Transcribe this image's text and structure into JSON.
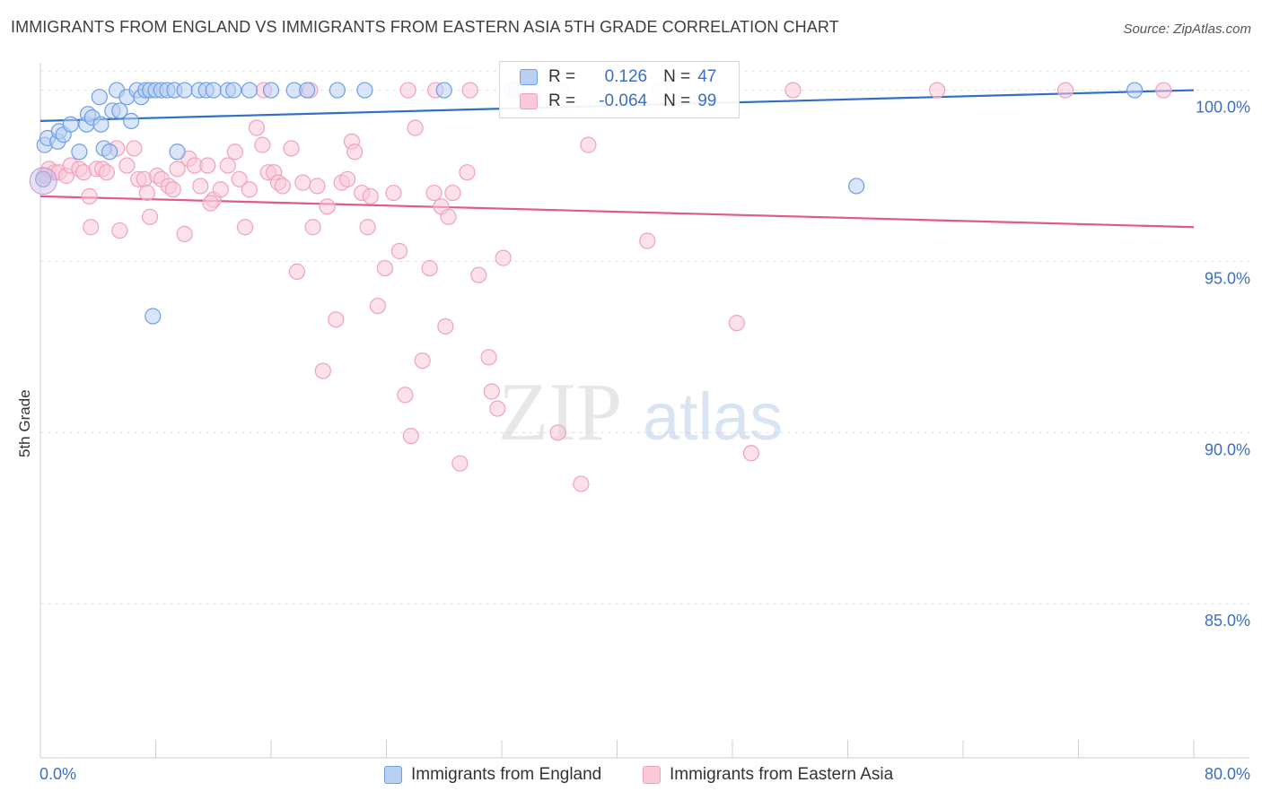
{
  "title": "IMMIGRANTS FROM ENGLAND VS IMMIGRANTS FROM EASTERN ASIA 5TH GRADE CORRELATION CHART",
  "source": "Source: ZipAtlas.com",
  "watermark": {
    "zip": "ZIP",
    "atlas": "atlas"
  },
  "colors": {
    "england": "#6f9ee6",
    "eastern_asia": "#f0a2bb",
    "england_line": "#2f6fc6",
    "eastern_asia_line": "#e05a8a",
    "axis_text": "#3a6fc4"
  },
  "stats": {
    "england": {
      "r_label": "R =",
      "r": "0.126",
      "n_label": "N =",
      "n": "47"
    },
    "eastern_asia": {
      "r_label": "R =",
      "r": "-0.064",
      "n_label": "N =",
      "n": "99"
    }
  },
  "chart_data": {
    "type": "scatter",
    "title": "IMMIGRANTS FROM ENGLAND VS IMMIGRANTS FROM EASTERN ASIA 5TH GRADE CORRELATION CHART",
    "xlabel": "",
    "ylabel": "5th Grade",
    "xlim": [
      0,
      80
    ],
    "ylim": [
      80.5,
      100.8
    ],
    "x_tick_labels": [
      "0.0%",
      "80.0%"
    ],
    "y_ticks": [
      85,
      90,
      95,
      100
    ],
    "y_tick_labels": [
      "85.0%",
      "90.0%",
      "95.0%",
      "100.0%"
    ],
    "grid": true,
    "legend_position": "bottom",
    "series": [
      {
        "name": "Immigrants from England",
        "color": "#6f9ee6",
        "trend": [
          [
            0,
            99.1
          ],
          [
            80,
            100.0
          ]
        ],
        "points": [
          [
            0.2,
            97.4
          ],
          [
            0.3,
            98.4
          ],
          [
            0.5,
            98.6
          ],
          [
            1.2,
            98.5
          ],
          [
            1.3,
            98.8
          ],
          [
            1.6,
            98.7
          ],
          [
            2.1,
            99.0
          ],
          [
            2.7,
            98.2
          ],
          [
            3.2,
            99.0
          ],
          [
            3.3,
            99.3
          ],
          [
            3.6,
            99.2
          ],
          [
            4.1,
            99.8
          ],
          [
            4.2,
            99.0
          ],
          [
            4.4,
            98.3
          ],
          [
            4.8,
            98.2
          ],
          [
            5.0,
            99.4
          ],
          [
            5.3,
            100.0
          ],
          [
            5.5,
            99.4
          ],
          [
            6.0,
            99.8
          ],
          [
            6.3,
            99.1
          ],
          [
            6.7,
            100.0
          ],
          [
            7.0,
            99.8
          ],
          [
            7.3,
            100.0
          ],
          [
            7.6,
            100.0
          ],
          [
            8.0,
            100.0
          ],
          [
            8.4,
            100.0
          ],
          [
            8.8,
            100.0
          ],
          [
            9.3,
            100.0
          ],
          [
            10.0,
            100.0
          ],
          [
            11.0,
            100.0
          ],
          [
            11.5,
            100.0
          ],
          [
            12.0,
            100.0
          ],
          [
            13.0,
            100.0
          ],
          [
            13.4,
            100.0
          ],
          [
            14.5,
            100.0
          ],
          [
            16.0,
            100.0
          ],
          [
            17.6,
            100.0
          ],
          [
            18.5,
            100.0
          ],
          [
            20.6,
            100.0
          ],
          [
            22.5,
            100.0
          ],
          [
            28.0,
            100.0
          ],
          [
            32.7,
            100.0
          ],
          [
            7.8,
            93.4
          ],
          [
            9.5,
            98.2
          ],
          [
            56.6,
            97.2
          ],
          [
            75.9,
            100.0
          ],
          [
            33.0,
            100.0
          ]
        ]
      },
      {
        "name": "Immigrants from Eastern Asia",
        "color": "#f0a2bb",
        "trend": [
          [
            0,
            96.9
          ],
          [
            80,
            96.0
          ]
        ],
        "points": [
          [
            0.3,
            97.5
          ],
          [
            0.6,
            97.7
          ],
          [
            1.0,
            97.6
          ],
          [
            1.3,
            97.6
          ],
          [
            1.8,
            97.5
          ],
          [
            2.1,
            97.8
          ],
          [
            2.7,
            97.7
          ],
          [
            3.0,
            97.6
          ],
          [
            3.4,
            96.9
          ],
          [
            3.5,
            96.0
          ],
          [
            3.9,
            97.7
          ],
          [
            4.3,
            97.7
          ],
          [
            4.6,
            97.6
          ],
          [
            5.3,
            98.3
          ],
          [
            5.5,
            95.9
          ],
          [
            6.0,
            97.8
          ],
          [
            6.5,
            98.3
          ],
          [
            6.8,
            97.4
          ],
          [
            7.2,
            97.4
          ],
          [
            7.6,
            96.3
          ],
          [
            8.1,
            97.5
          ],
          [
            8.4,
            97.4
          ],
          [
            8.9,
            97.2
          ],
          [
            9.5,
            97.7
          ],
          [
            10.0,
            95.8
          ],
          [
            10.3,
            98.0
          ],
          [
            10.7,
            97.8
          ],
          [
            11.1,
            97.2
          ],
          [
            11.6,
            97.8
          ],
          [
            12.0,
            96.8
          ],
          [
            12.5,
            97.1
          ],
          [
            13.0,
            97.8
          ],
          [
            13.5,
            98.2
          ],
          [
            13.8,
            97.4
          ],
          [
            14.2,
            96.0
          ],
          [
            14.5,
            97.1
          ],
          [
            15.0,
            98.9
          ],
          [
            15.4,
            98.4
          ],
          [
            15.8,
            97.6
          ],
          [
            16.2,
            97.6
          ],
          [
            16.5,
            97.3
          ],
          [
            16.8,
            97.2
          ],
          [
            17.4,
            98.3
          ],
          [
            17.8,
            94.7
          ],
          [
            18.2,
            97.3
          ],
          [
            18.7,
            100.0
          ],
          [
            18.9,
            96.0
          ],
          [
            19.2,
            97.2
          ],
          [
            19.6,
            91.8
          ],
          [
            19.9,
            96.6
          ],
          [
            20.5,
            93.3
          ],
          [
            20.9,
            97.3
          ],
          [
            21.3,
            97.4
          ],
          [
            21.6,
            98.5
          ],
          [
            21.8,
            98.2
          ],
          [
            22.3,
            97.0
          ],
          [
            22.7,
            96.0
          ],
          [
            22.9,
            96.9
          ],
          [
            23.4,
            93.7
          ],
          [
            23.9,
            94.8
          ],
          [
            24.5,
            97.0
          ],
          [
            24.9,
            95.3
          ],
          [
            25.3,
            91.1
          ],
          [
            25.7,
            89.9
          ],
          [
            26.0,
            98.9
          ],
          [
            26.5,
            92.1
          ],
          [
            27.0,
            94.8
          ],
          [
            27.3,
            97.0
          ],
          [
            27.8,
            96.6
          ],
          [
            28.1,
            93.1
          ],
          [
            28.3,
            96.3
          ],
          [
            28.6,
            97.0
          ],
          [
            29.1,
            89.1
          ],
          [
            29.6,
            97.6
          ],
          [
            30.4,
            94.6
          ],
          [
            31.1,
            92.2
          ],
          [
            31.3,
            91.2
          ],
          [
            31.7,
            90.7
          ],
          [
            32.1,
            95.1
          ],
          [
            33.6,
            100.0
          ],
          [
            35.9,
            90.0
          ],
          [
            36.1,
            100.0
          ],
          [
            37.5,
            88.5
          ],
          [
            38.0,
            98.4
          ],
          [
            42.1,
            95.6
          ],
          [
            43.0,
            100.0
          ],
          [
            48.3,
            93.2
          ],
          [
            49.3,
            89.4
          ],
          [
            52.2,
            100.0
          ],
          [
            62.2,
            100.0
          ],
          [
            71.1,
            100.0
          ],
          [
            77.9,
            100.0
          ],
          [
            27.4,
            100.0
          ],
          [
            29.8,
            100.0
          ],
          [
            25.5,
            100.0
          ],
          [
            15.5,
            100.0
          ],
          [
            7.4,
            97.0
          ],
          [
            11.8,
            96.7
          ],
          [
            9.2,
            97.1
          ]
        ]
      }
    ]
  },
  "legend": {
    "items": [
      {
        "label": "Immigrants from England"
      },
      {
        "label": "Immigrants from Eastern Asia"
      }
    ]
  }
}
